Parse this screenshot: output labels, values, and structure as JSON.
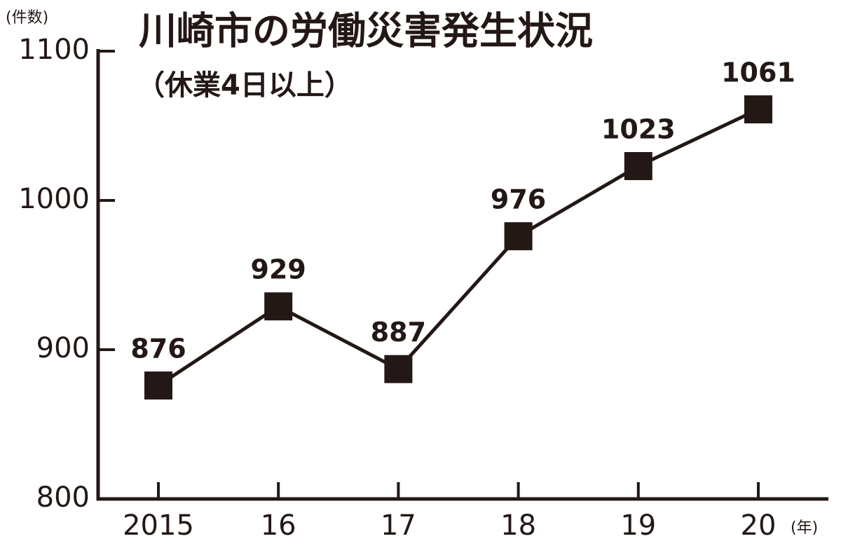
{
  "chart_data": {
    "type": "line",
    "title": "川崎市の労働災害発生状況",
    "subtitle": "（休業4日以上）",
    "ylabel": "(件数)",
    "xlabel": "(年)",
    "categories": [
      "2015",
      "16",
      "17",
      "18",
      "19",
      "20"
    ],
    "values": [
      876,
      929,
      887,
      976,
      1023,
      1061
    ],
    "color": "#231815",
    "ylim": [
      800,
      1100
    ],
    "yticks": [
      800,
      900,
      1000,
      1100
    ],
    "grid": false
  }
}
